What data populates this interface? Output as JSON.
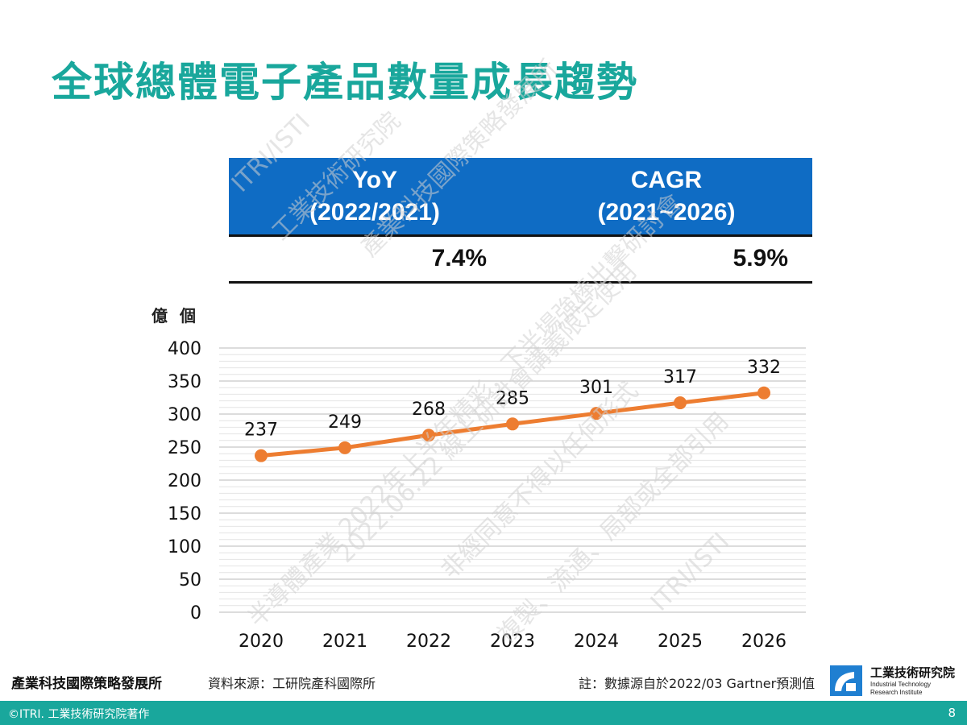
{
  "title": "全球總體電子產品數量成長趨勢",
  "stats": {
    "yoy_label_1": "YoY",
    "yoy_label_2": "(2022/2021)",
    "yoy_value": "7.4%",
    "cagr_label_1": "CAGR",
    "cagr_label_2": "(2021~2026)",
    "cagr_value": "5.9%"
  },
  "chart_data": {
    "type": "line",
    "ylabel": "億 個",
    "categories": [
      "2020",
      "2021",
      "2022",
      "2023",
      "2024",
      "2025",
      "2026"
    ],
    "series": [
      {
        "values": [
          237,
          249,
          268,
          285,
          301,
          317,
          332
        ]
      }
    ],
    "ylim": [
      0,
      400
    ],
    "yticks": [
      0,
      50,
      100,
      150,
      200,
      250,
      300,
      350,
      400
    ],
    "data_labels": true,
    "grid": true,
    "line_color": "#ed7d31",
    "legend": "none"
  },
  "watermark": {
    "lines": [
      "ITRI/ISTI",
      "工業技術研究院",
      "產業科技國際策略發展所",
      "半導體產業 2022年上半年精彩，下半場強棒出擊研討會",
      "2022.06.22 線上研討會講義限定使用",
      "非經同意不得以任何形式",
      "複製、流通、局部或全部引用",
      "ITRI/ISTI"
    ],
    "color": "#cfcfcf"
  },
  "footer": {
    "org": "產業科技國際策略發展所",
    "source": "資料來源：工研院產科國際所",
    "note": "註：數據源自於2022/03 Gartner預測值",
    "logo_zh": "工業技術研究院",
    "logo_en_1": "Industrial Technology",
    "logo_en_2": "Research Institute",
    "copyright": "©ITRI. 工業技術研究院著作",
    "page": "8"
  },
  "colors": {
    "accent": "#19a79c",
    "table_header": "#0f6cc4",
    "line": "#ed7d31"
  }
}
